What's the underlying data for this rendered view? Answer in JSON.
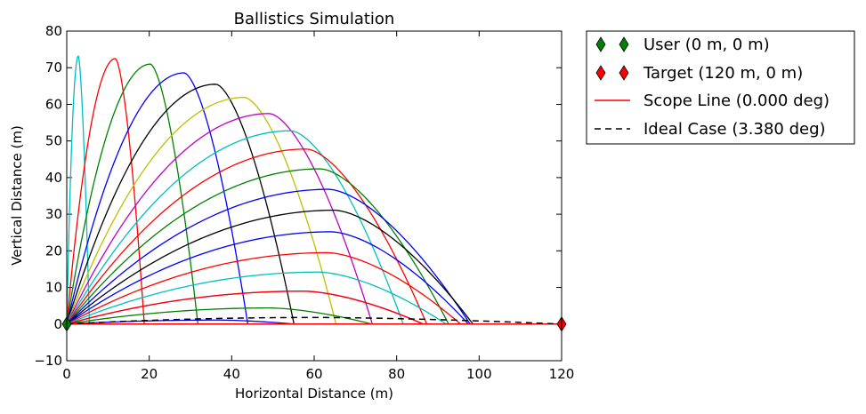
{
  "chart_data": {
    "type": "line",
    "title": "Ballistics Simulation",
    "xlabel": "Horizontal Distance (m)",
    "ylabel": "Vertical Distance (m)",
    "xlim": [
      0,
      120
    ],
    "ylim": [
      -10,
      80
    ],
    "xticks": [
      "0",
      "20",
      "40",
      "60",
      "80",
      "100",
      "120"
    ],
    "yticks": [
      "−10",
      "0",
      "10",
      "20",
      "30",
      "40",
      "50",
      "60",
      "70",
      "80"
    ],
    "xtick_values": [
      0,
      20,
      40,
      60,
      80,
      100,
      120
    ],
    "ytick_values": [
      -10,
      0,
      10,
      20,
      30,
      40,
      50,
      60,
      70,
      80
    ],
    "grid": false,
    "legend_placement": "outside-right",
    "trajectories": [
      {
        "color": "#00bfbf",
        "apex_x": 2.8,
        "apex_y": 73.2,
        "range": 5.5
      },
      {
        "color": "#ff0000",
        "apex_x": 11.8,
        "apex_y": 72.5,
        "range": 18.8
      },
      {
        "color": "#008000",
        "apex_x": 20.3,
        "apex_y": 71.0,
        "range": 31.8
      },
      {
        "color": "#0000ff",
        "apex_x": 28.5,
        "apex_y": 68.6,
        "range": 43.9
      },
      {
        "color": "#000000",
        "apex_x": 36.2,
        "apex_y": 65.5,
        "range": 55.1
      },
      {
        "color": "#bfbf00",
        "apex_x": 43.1,
        "apex_y": 61.9,
        "range": 65.3
      },
      {
        "color": "#bf00bf",
        "apex_x": 49.2,
        "apex_y": 57.5,
        "range": 74.1
      },
      {
        "color": "#00bfbf",
        "apex_x": 54.4,
        "apex_y": 52.8,
        "range": 81.6
      },
      {
        "color": "#ff0000",
        "apex_x": 58.2,
        "apex_y": 47.8,
        "range": 87.3
      },
      {
        "color": "#008000",
        "apex_x": 61.6,
        "apex_y": 42.4,
        "range": 92.6
      },
      {
        "color": "#0000ff",
        "apex_x": 63.6,
        "apex_y": 36.8,
        "range": 97.8
      },
      {
        "color": "#000000",
        "apex_x": 65.0,
        "apex_y": 31.1,
        "range": 98.5
      },
      {
        "color": "#0000ff",
        "apex_x": 64.3,
        "apex_y": 25.2,
        "range": 97.4
      },
      {
        "color": "#ff0000",
        "apex_x": 63.3,
        "apex_y": 19.5,
        "range": 95.5
      },
      {
        "color": "#00bfbf",
        "apex_x": 61.2,
        "apex_y": 14.2,
        "range": 92.0
      },
      {
        "color": "#bf00bf",
        "apex_x": 57.6,
        "apex_y": 9.0,
        "range": 86.5
      },
      {
        "color": "#ff0000",
        "apex_x": 57.4,
        "apex_y": 9.0,
        "range": 86.4
      },
      {
        "color": "#008000",
        "apex_x": 49.3,
        "apex_y": 4.4,
        "range": 74.0
      },
      {
        "color": "#0000ff",
        "apex_x": 36.8,
        "apex_y": 1.1,
        "range": 55.3
      }
    ],
    "series": [
      {
        "name": "User (0 m, 0 m)",
        "kind": "marker",
        "color": "#008000",
        "x": [
          0
        ],
        "y": [
          0
        ]
      },
      {
        "name": "Target (120 m, 0 m)",
        "kind": "marker",
        "color": "#ff0000",
        "x": [
          120
        ],
        "y": [
          0
        ]
      },
      {
        "name": "Scope Line (0.000 deg)",
        "kind": "line",
        "color": "#ff0000",
        "x": [
          0,
          120
        ],
        "y": [
          0,
          0
        ]
      },
      {
        "name": "Ideal Case (3.380 deg)",
        "kind": "dashed",
        "color": "#000000",
        "apex_x": 60,
        "apex_y": 1.8,
        "range": 120
      }
    ]
  }
}
